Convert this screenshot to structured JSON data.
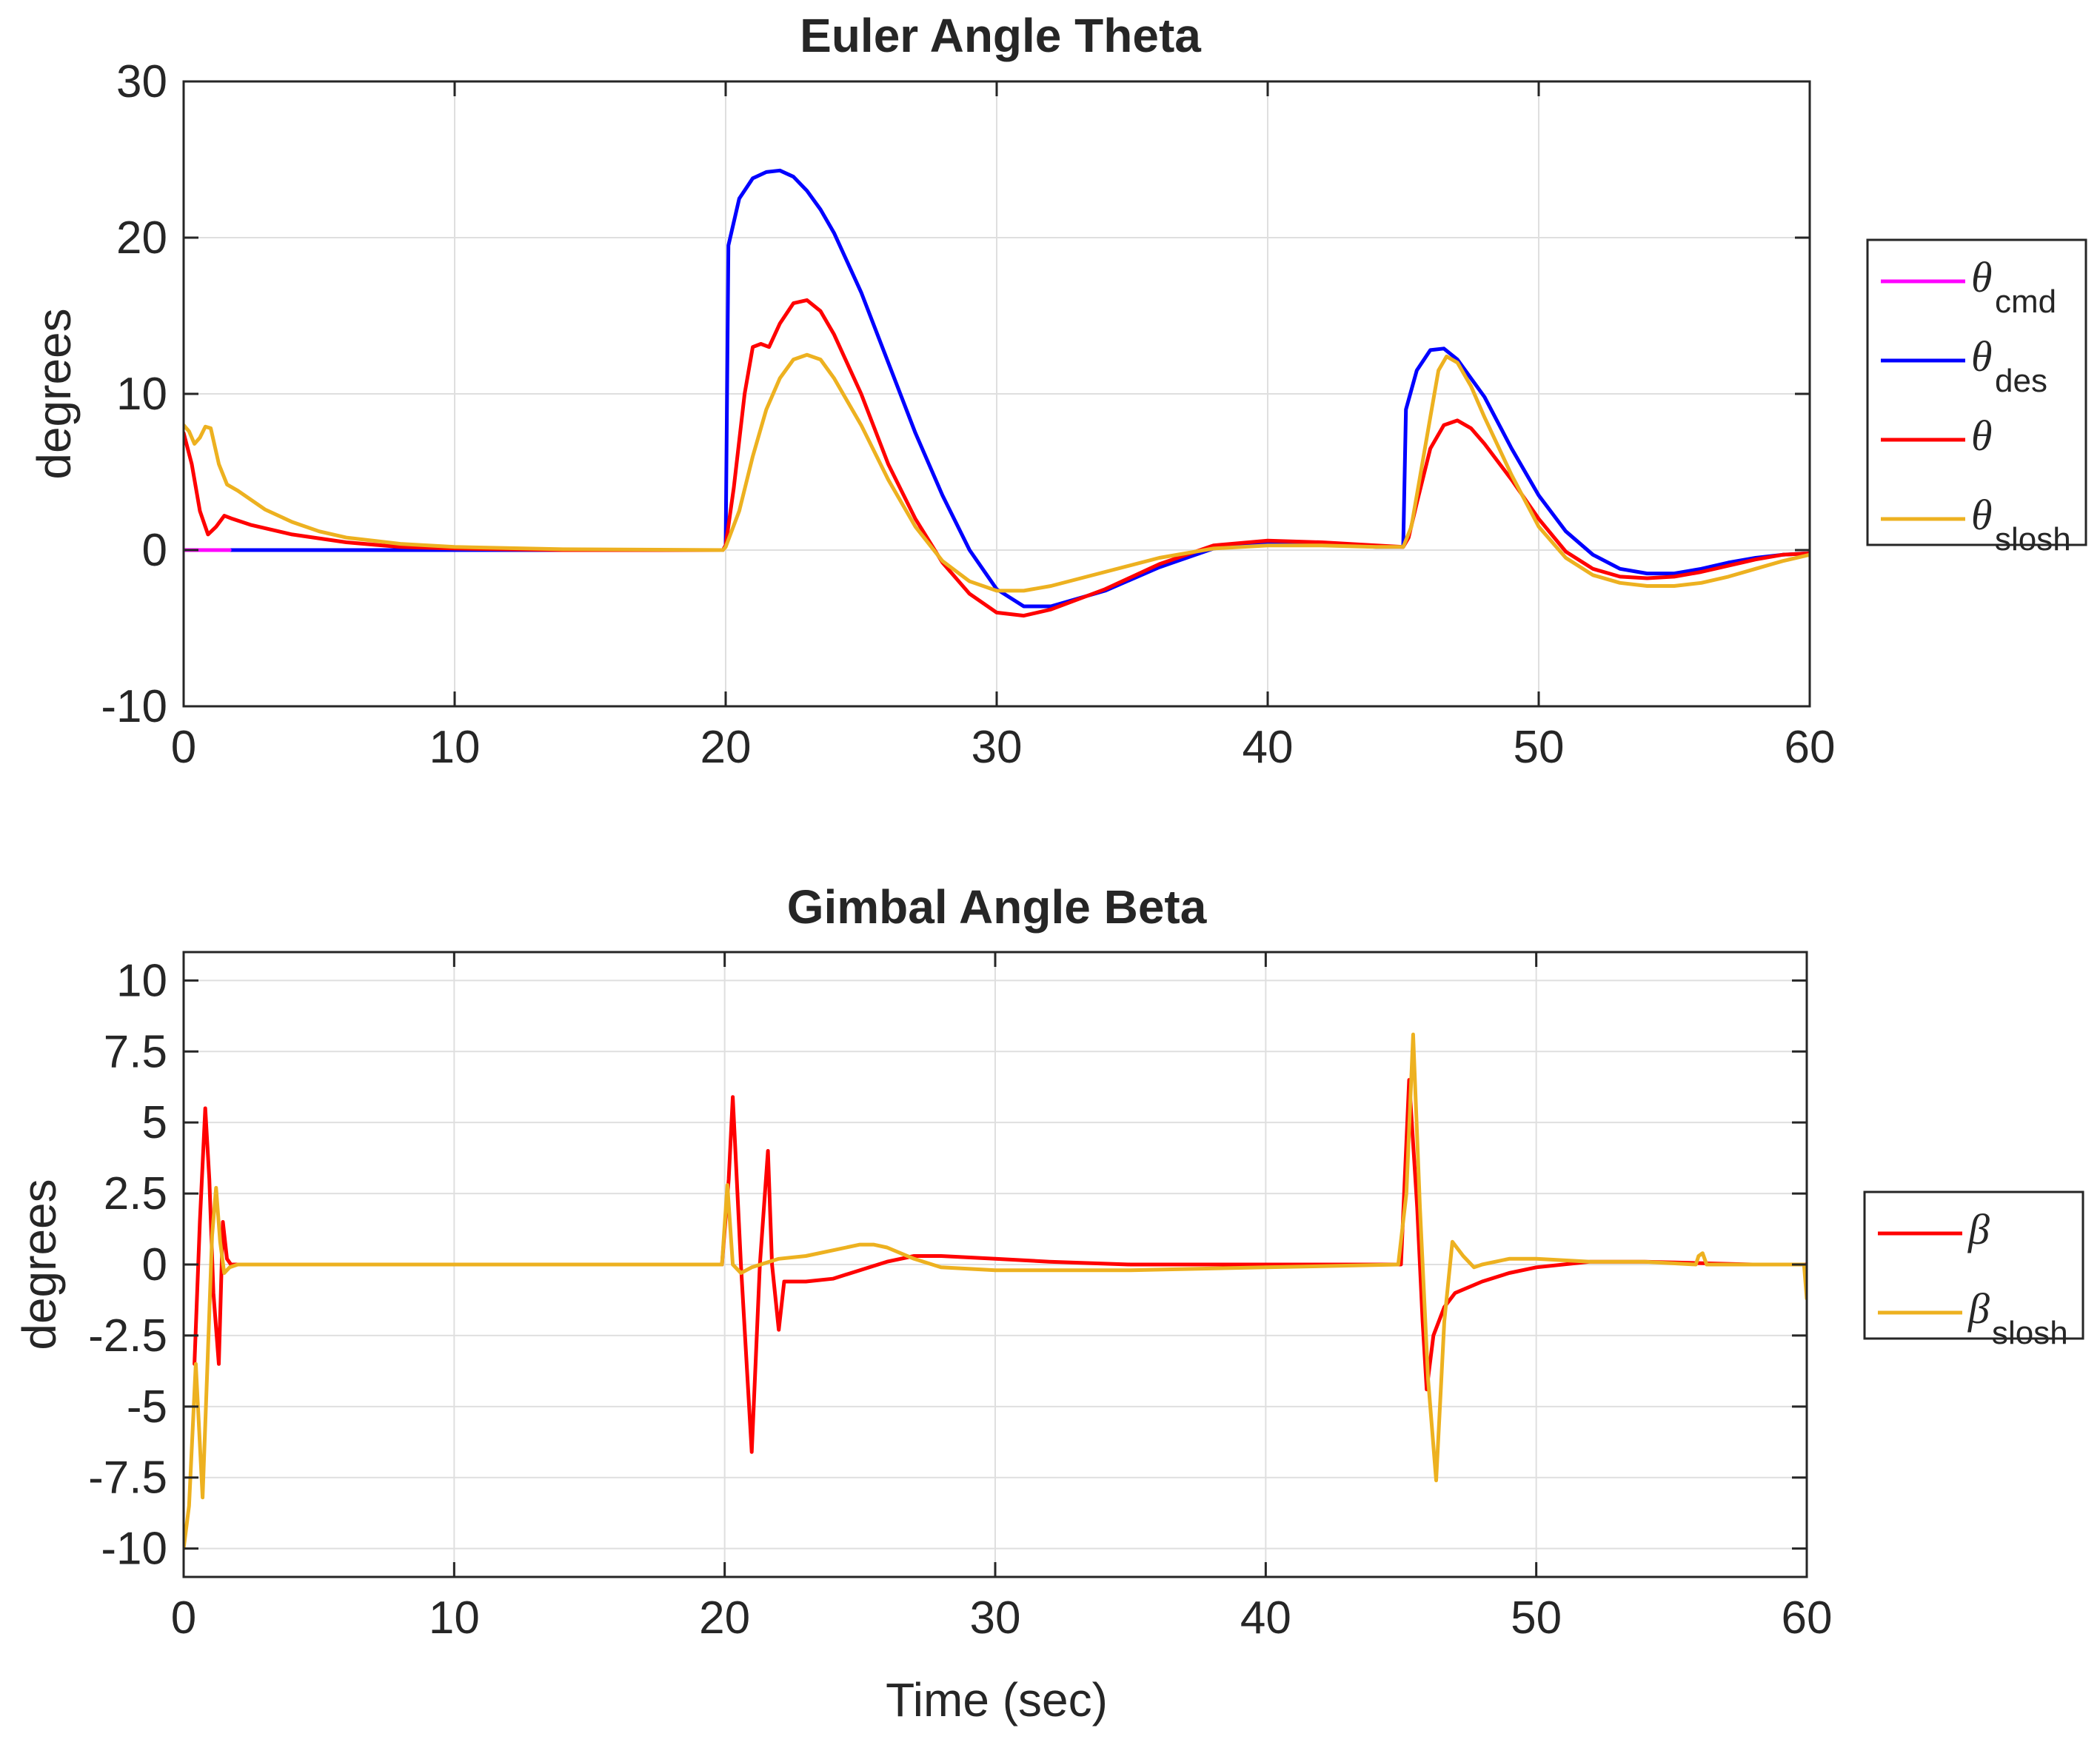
{
  "chart_data": [
    {
      "type": "line",
      "title": "Euler Angle Theta",
      "xlabel": "",
      "ylabel": "degrees",
      "xlim": [
        0,
        60
      ],
      "ylim": [
        -10,
        30
      ],
      "xticks": [
        0,
        10,
        20,
        30,
        40,
        50,
        60
      ],
      "yticks": [
        -10,
        0,
        10,
        20,
        30
      ],
      "grid": true,
      "legend_position": "outside-right",
      "series": [
        {
          "name": "theta_cmd",
          "symbol": "θ",
          "subscript": "cmd",
          "color": "#FF00FF",
          "x": [
            0,
            1.7
          ],
          "y": [
            0,
            0
          ]
        },
        {
          "name": "theta_des",
          "symbol": "θ",
          "subscript": "des",
          "color": "#0000FF",
          "x": [
            0,
            19.9,
            20.0,
            20.1,
            20.5,
            21,
            21.5,
            22,
            22.5,
            23,
            23.5,
            24,
            25,
            26,
            27,
            28,
            29,
            30,
            31,
            32,
            34,
            36,
            38,
            40,
            42,
            44,
            44.9,
            45.0,
            45.1,
            45.5,
            46,
            46.5,
            47,
            48,
            49,
            50,
            51,
            52,
            53,
            54,
            55,
            56,
            57,
            58,
            59,
            60
          ],
          "y": [
            0,
            0,
            0.3,
            19.5,
            22.5,
            23.8,
            24.2,
            24.3,
            23.9,
            23.0,
            21.8,
            20.3,
            16.5,
            12.0,
            7.5,
            3.5,
            0.0,
            -2.5,
            -3.6,
            -3.6,
            -2.6,
            -1.1,
            0.1,
            0.5,
            0.4,
            0.2,
            0.2,
            0.2,
            9.0,
            11.5,
            12.8,
            12.9,
            12.2,
            9.8,
            6.5,
            3.5,
            1.2,
            -0.3,
            -1.2,
            -1.5,
            -1.5,
            -1.2,
            -0.8,
            -0.5,
            -0.3,
            -0.2
          ]
        },
        {
          "name": "theta",
          "symbol": "θ",
          "subscript": "",
          "color": "#FF0000",
          "x": [
            0,
            0.3,
            0.6,
            0.9,
            1.2,
            1.5,
            1.8,
            2.5,
            4,
            6,
            8,
            10,
            14,
            19.9,
            20.0,
            20.3,
            20.7,
            21,
            21.3,
            21.6,
            22,
            22.5,
            23,
            23.5,
            24,
            25,
            26,
            27,
            28,
            29,
            30,
            31,
            32,
            34,
            36,
            38,
            40,
            42,
            44,
            45.0,
            45.2,
            45.5,
            46,
            46.5,
            47,
            47.5,
            48,
            49,
            50,
            51,
            52,
            53,
            54,
            55,
            56,
            57,
            58,
            59,
            60
          ],
          "y": [
            7.5,
            5.5,
            2.5,
            1.0,
            1.5,
            2.2,
            2.0,
            1.6,
            1.0,
            0.5,
            0.2,
            0.1,
            0.0,
            0.0,
            0.3,
            4.0,
            10.0,
            13.0,
            13.2,
            13.0,
            14.5,
            15.8,
            16.0,
            15.3,
            13.8,
            10.0,
            5.5,
            2.0,
            -0.8,
            -2.8,
            -4.0,
            -4.2,
            -3.8,
            -2.5,
            -0.9,
            0.3,
            0.6,
            0.5,
            0.3,
            0.2,
            0.8,
            3.0,
            6.5,
            8.0,
            8.3,
            7.8,
            6.8,
            4.5,
            2.0,
            -0.1,
            -1.2,
            -1.7,
            -1.8,
            -1.7,
            -1.4,
            -1.0,
            -0.6,
            -0.3,
            -0.2
          ]
        },
        {
          "name": "theta_slosh",
          "symbol": "θ",
          "subscript": "slosh",
          "color": "#EDB120",
          "x": [
            0,
            0.2,
            0.4,
            0.6,
            0.8,
            1.0,
            1.3,
            1.6,
            2.0,
            3,
            4,
            5,
            6,
            8,
            10,
            14,
            19.9,
            20.0,
            20.5,
            21,
            21.5,
            22,
            22.5,
            23,
            23.5,
            24,
            25,
            26,
            27,
            28,
            29,
            30,
            31,
            32,
            34,
            36,
            38,
            40,
            42,
            44,
            45.0,
            45.3,
            45.6,
            46,
            46.3,
            46.6,
            47,
            47.5,
            48,
            49,
            50,
            51,
            52,
            53,
            54,
            55,
            56,
            57,
            58,
            59,
            60
          ],
          "y": [
            8.0,
            7.6,
            6.8,
            7.2,
            7.9,
            7.8,
            5.5,
            4.2,
            3.8,
            2.6,
            1.8,
            1.2,
            0.8,
            0.4,
            0.2,
            0.05,
            0.0,
            0.2,
            2.5,
            6.0,
            9.0,
            11.0,
            12.2,
            12.5,
            12.2,
            11.0,
            8.0,
            4.5,
            1.5,
            -0.7,
            -2.0,
            -2.6,
            -2.6,
            -2.3,
            -1.4,
            -0.5,
            0.1,
            0.3,
            0.3,
            0.2,
            0.2,
            1.5,
            4.5,
            8.5,
            11.5,
            12.4,
            12.0,
            10.5,
            8.5,
            4.8,
            1.5,
            -0.5,
            -1.6,
            -2.1,
            -2.3,
            -2.3,
            -2.1,
            -1.7,
            -1.2,
            -0.7,
            -0.3
          ]
        }
      ]
    },
    {
      "type": "line",
      "title": "Gimbal Angle Beta",
      "xlabel": "Time (sec)",
      "ylabel": "degrees",
      "xlim": [
        0,
        60
      ],
      "ylim": [
        -11,
        11
      ],
      "xticks": [
        0,
        10,
        20,
        30,
        40,
        50,
        60
      ],
      "yticks": [
        -10,
        -7.5,
        -5,
        -2.5,
        0,
        2.5,
        5,
        7.5,
        10
      ],
      "ytick_labels": [
        "-10",
        "-7.5",
        "-5",
        "-2.5",
        "0",
        "2.5",
        "5",
        "7.5",
        "10"
      ],
      "grid": true,
      "legend_position": "outside-right",
      "series": [
        {
          "name": "beta",
          "symbol": "β",
          "subscript": "",
          "color": "#FF0000",
          "x": [
            0.4,
            0.6,
            0.8,
            0.95,
            1.1,
            1.3,
            1.45,
            1.6,
            1.75,
            1.9,
            2.2,
            3,
            5,
            10,
            19.9,
            20.15,
            20.3,
            20.6,
            21.0,
            21.3,
            21.6,
            21.75,
            22.0,
            22.2,
            22.5,
            23,
            24,
            25,
            26,
            27,
            28,
            30,
            32,
            35,
            38,
            40,
            42,
            45.0,
            45.3,
            45.6,
            45.8,
            45.95,
            46.2,
            46.6,
            47,
            48,
            49,
            50,
            52,
            54,
            56,
            58,
            60
          ],
          "y": [
            -3.5,
            1.5,
            5.5,
            3.0,
            -1.0,
            -3.5,
            1.5,
            0.2,
            0.0,
            0.0,
            0.0,
            0.0,
            0.0,
            0.0,
            0.0,
            3.0,
            5.9,
            0.0,
            -6.6,
            0.0,
            4.0,
            0.0,
            -2.3,
            -0.6,
            -0.6,
            -0.6,
            -0.5,
            -0.2,
            0.1,
            0.3,
            0.3,
            0.2,
            0.1,
            0.0,
            0.0,
            0.0,
            0.0,
            0.0,
            6.5,
            2.0,
            -2.0,
            -4.4,
            -2.5,
            -1.5,
            -1.0,
            -0.6,
            -0.3,
            -0.1,
            0.1,
            0.1,
            0.05,
            0.0,
            0.0
          ]
        },
        {
          "name": "beta_slosh",
          "symbol": "β",
          "subscript": "slosh",
          "color": "#EDB120",
          "x": [
            0,
            0.2,
            0.45,
            0.7,
            0.9,
            1.05,
            1.2,
            1.35,
            1.5,
            1.7,
            2.0,
            3,
            5,
            10,
            19.9,
            20.1,
            20.3,
            20.6,
            21,
            22,
            23,
            24,
            25,
            25.5,
            26,
            27,
            28,
            30,
            35,
            40,
            44.9,
            45.2,
            45.45,
            45.7,
            46.0,
            46.3,
            46.6,
            46.9,
            47.3,
            47.7,
            48,
            49,
            50,
            52,
            54,
            55.9,
            56.0,
            56.15,
            56.3,
            58,
            59.9,
            60
          ],
          "y": [
            -10.0,
            -8.5,
            -3.5,
            -8.2,
            -3.0,
            1.0,
            2.7,
            0.8,
            -0.3,
            -0.1,
            0.0,
            0.0,
            0.0,
            0.0,
            0.0,
            2.8,
            0.0,
            -0.3,
            -0.1,
            0.2,
            0.3,
            0.5,
            0.7,
            0.7,
            0.6,
            0.2,
            -0.1,
            -0.2,
            -0.2,
            -0.1,
            0.0,
            2.5,
            8.1,
            2.0,
            -4.0,
            -7.6,
            -2.0,
            0.8,
            0.3,
            -0.1,
            0.0,
            0.2,
            0.2,
            0.1,
            0.1,
            0.0,
            0.3,
            0.4,
            0.0,
            0.0,
            0.0,
            -1.2
          ]
        }
      ]
    }
  ]
}
